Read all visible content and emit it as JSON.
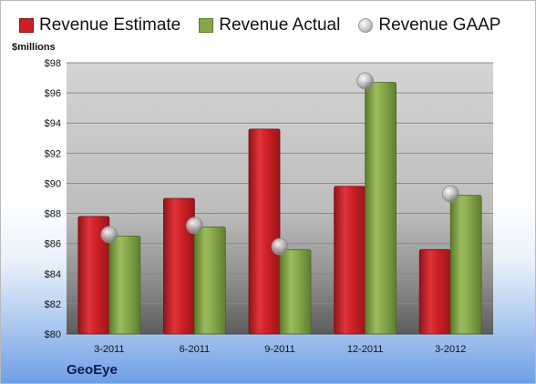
{
  "company": "GeoEye",
  "legend": [
    {
      "label": "Revenue Estimate",
      "color": "#cc1f25",
      "icon": "red-square-swatch"
    },
    {
      "label": "Revenue Actual",
      "color": "#86a84a",
      "icon": "green-square-swatch"
    },
    {
      "label": "Revenue GAAP",
      "color": "#b5b5b5",
      "icon": "gray-sphere-swatch"
    }
  ],
  "chart_data": {
    "type": "bar",
    "title": "",
    "ylabel": "$millions",
    "xlabel": "",
    "categories": [
      "3-2011",
      "6-2011",
      "9-2011",
      "12-2011",
      "3-2012"
    ],
    "ylim": [
      80,
      98
    ],
    "yticks": [
      "$80",
      "$82",
      "$84",
      "$86",
      "$88",
      "$90",
      "$92",
      "$94",
      "$96",
      "$98"
    ],
    "grid": true,
    "legend_position": "top",
    "series": [
      {
        "name": "Revenue Estimate",
        "kind": "bar",
        "color": "#cc1f25",
        "values": [
          87.8,
          89.0,
          93.6,
          89.8,
          85.6
        ]
      },
      {
        "name": "Revenue Actual",
        "kind": "bar",
        "color": "#86a84a",
        "values": [
          86.5,
          87.1,
          85.6,
          96.7,
          89.2
        ]
      },
      {
        "name": "Revenue GAAP",
        "kind": "marker",
        "color": "#b5b5b5",
        "values": [
          86.6,
          87.2,
          85.8,
          96.8,
          89.3
        ]
      }
    ]
  }
}
